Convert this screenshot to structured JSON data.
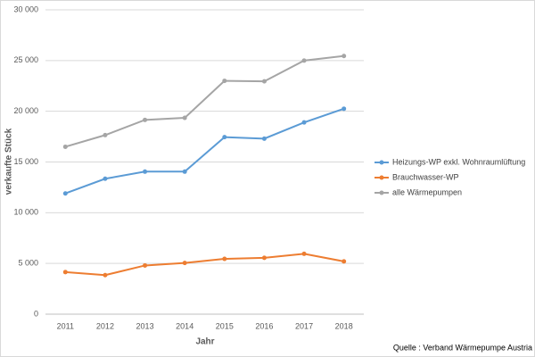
{
  "chart_data": {
    "type": "line",
    "y_label": "verkaufte Stück",
    "x_label": "Jahr",
    "source": "Quelle : Verband Wärmepumpe Austria",
    "categories": [
      "2011",
      "2012",
      "2013",
      "2014",
      "2015",
      "2016",
      "2017",
      "2018"
    ],
    "series": [
      {
        "name": "Heizungs-WP exkl. Wohnraumlüftung",
        "color": "#5b9bd5",
        "values": [
          11900,
          13350,
          14050,
          14050,
          17450,
          17300,
          18900,
          20250
        ]
      },
      {
        "name": "Brauchwasser-WP",
        "color": "#ed7d31",
        "values": [
          4150,
          3850,
          4800,
          5050,
          5450,
          5550,
          5950,
          5200
        ]
      },
      {
        "name": "alle Wärmepumpen",
        "color": "#a5a5a5",
        "values": [
          16500,
          17650,
          19150,
          19350,
          23000,
          22950,
          25000,
          25450
        ]
      }
    ],
    "ylim": [
      0,
      30000
    ],
    "yticks": [
      0,
      {
        "value": 5000,
        "label": "5 000"
      },
      {
        "value": 10000,
        "label": "10 000"
      },
      {
        "value": 15000,
        "label": "15 000"
      },
      {
        "value": 20000,
        "label": "20 000"
      },
      {
        "value": 25000,
        "label": "25 000"
      },
      {
        "value": 30000,
        "label": "30 000"
      }
    ],
    "grid": true,
    "legend": "right"
  }
}
